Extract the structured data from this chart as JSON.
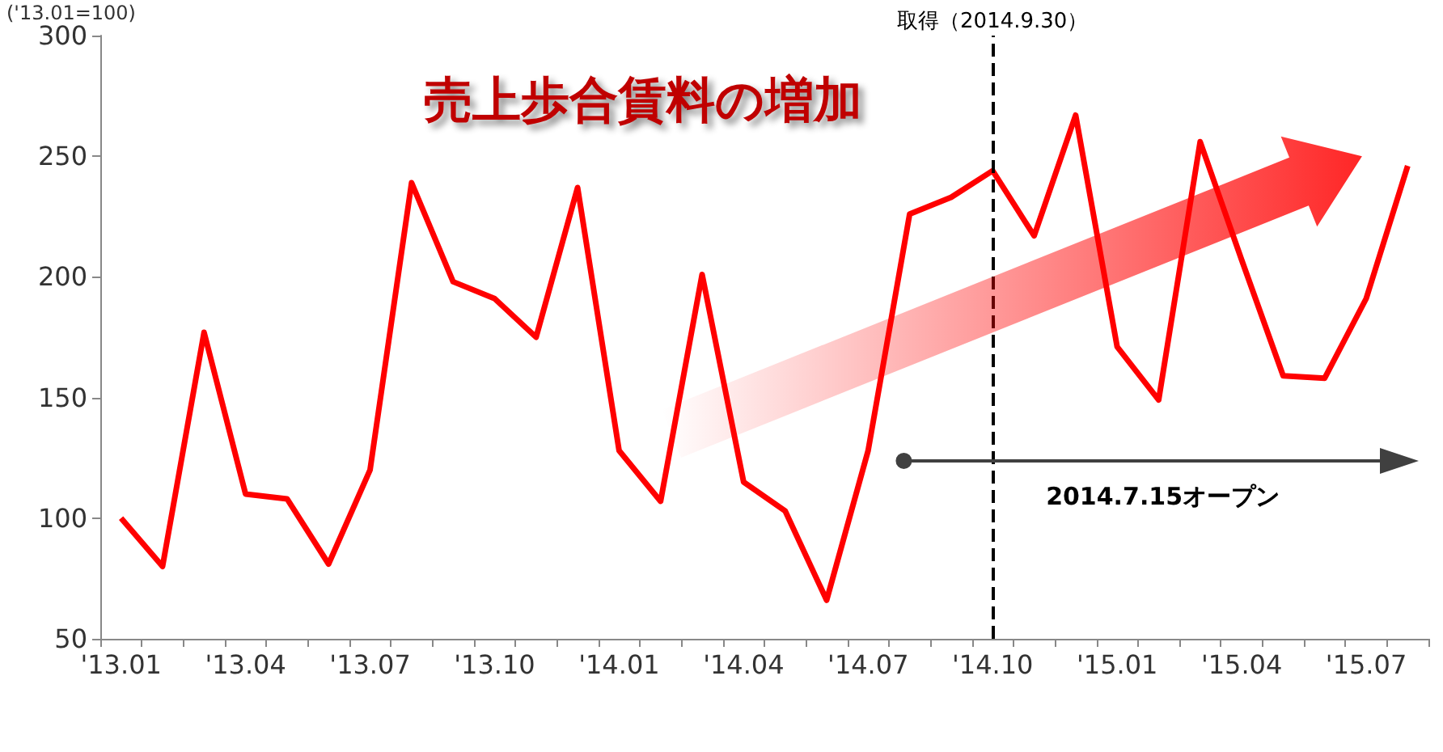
{
  "chart_data": {
    "type": "line",
    "title": "売上歩合賃料の増加",
    "ylabel": "('13.01=100)",
    "categories": [
      "'13.01",
      null,
      null,
      "'13.04",
      null,
      null,
      "'13.07",
      null,
      null,
      "'13.10",
      null,
      null,
      "'14.01",
      null,
      null,
      "'14.04",
      null,
      null,
      "'14.07",
      null,
      null,
      "'14.10",
      null,
      null,
      "'15.01",
      null,
      null,
      "'15.04",
      null,
      null,
      "'15.07",
      null
    ],
    "series": [
      {
        "color": "#ff0000",
        "values": [
          100,
          80,
          177,
          110,
          108,
          81,
          120,
          239,
          198,
          191,
          175,
          237,
          128,
          107,
          201,
          115,
          103,
          66,
          128,
          226,
          233,
          244,
          217,
          267,
          171,
          149,
          256,
          207,
          159,
          158,
          191,
          246
        ]
      }
    ],
    "ylim": [
      50,
      300
    ],
    "yticks": [
      50,
      100,
      150,
      200,
      250,
      300
    ],
    "ref_lines": [
      {
        "axis": "x",
        "value": "'14.10",
        "label": "取得（2014.9.30）",
        "color": "#000000",
        "line_style": "dashed"
      }
    ],
    "annotations": [
      "2014.7.15オープン"
    ],
    "grid": false,
    "marker": "none",
    "line_style": "solid"
  }
}
